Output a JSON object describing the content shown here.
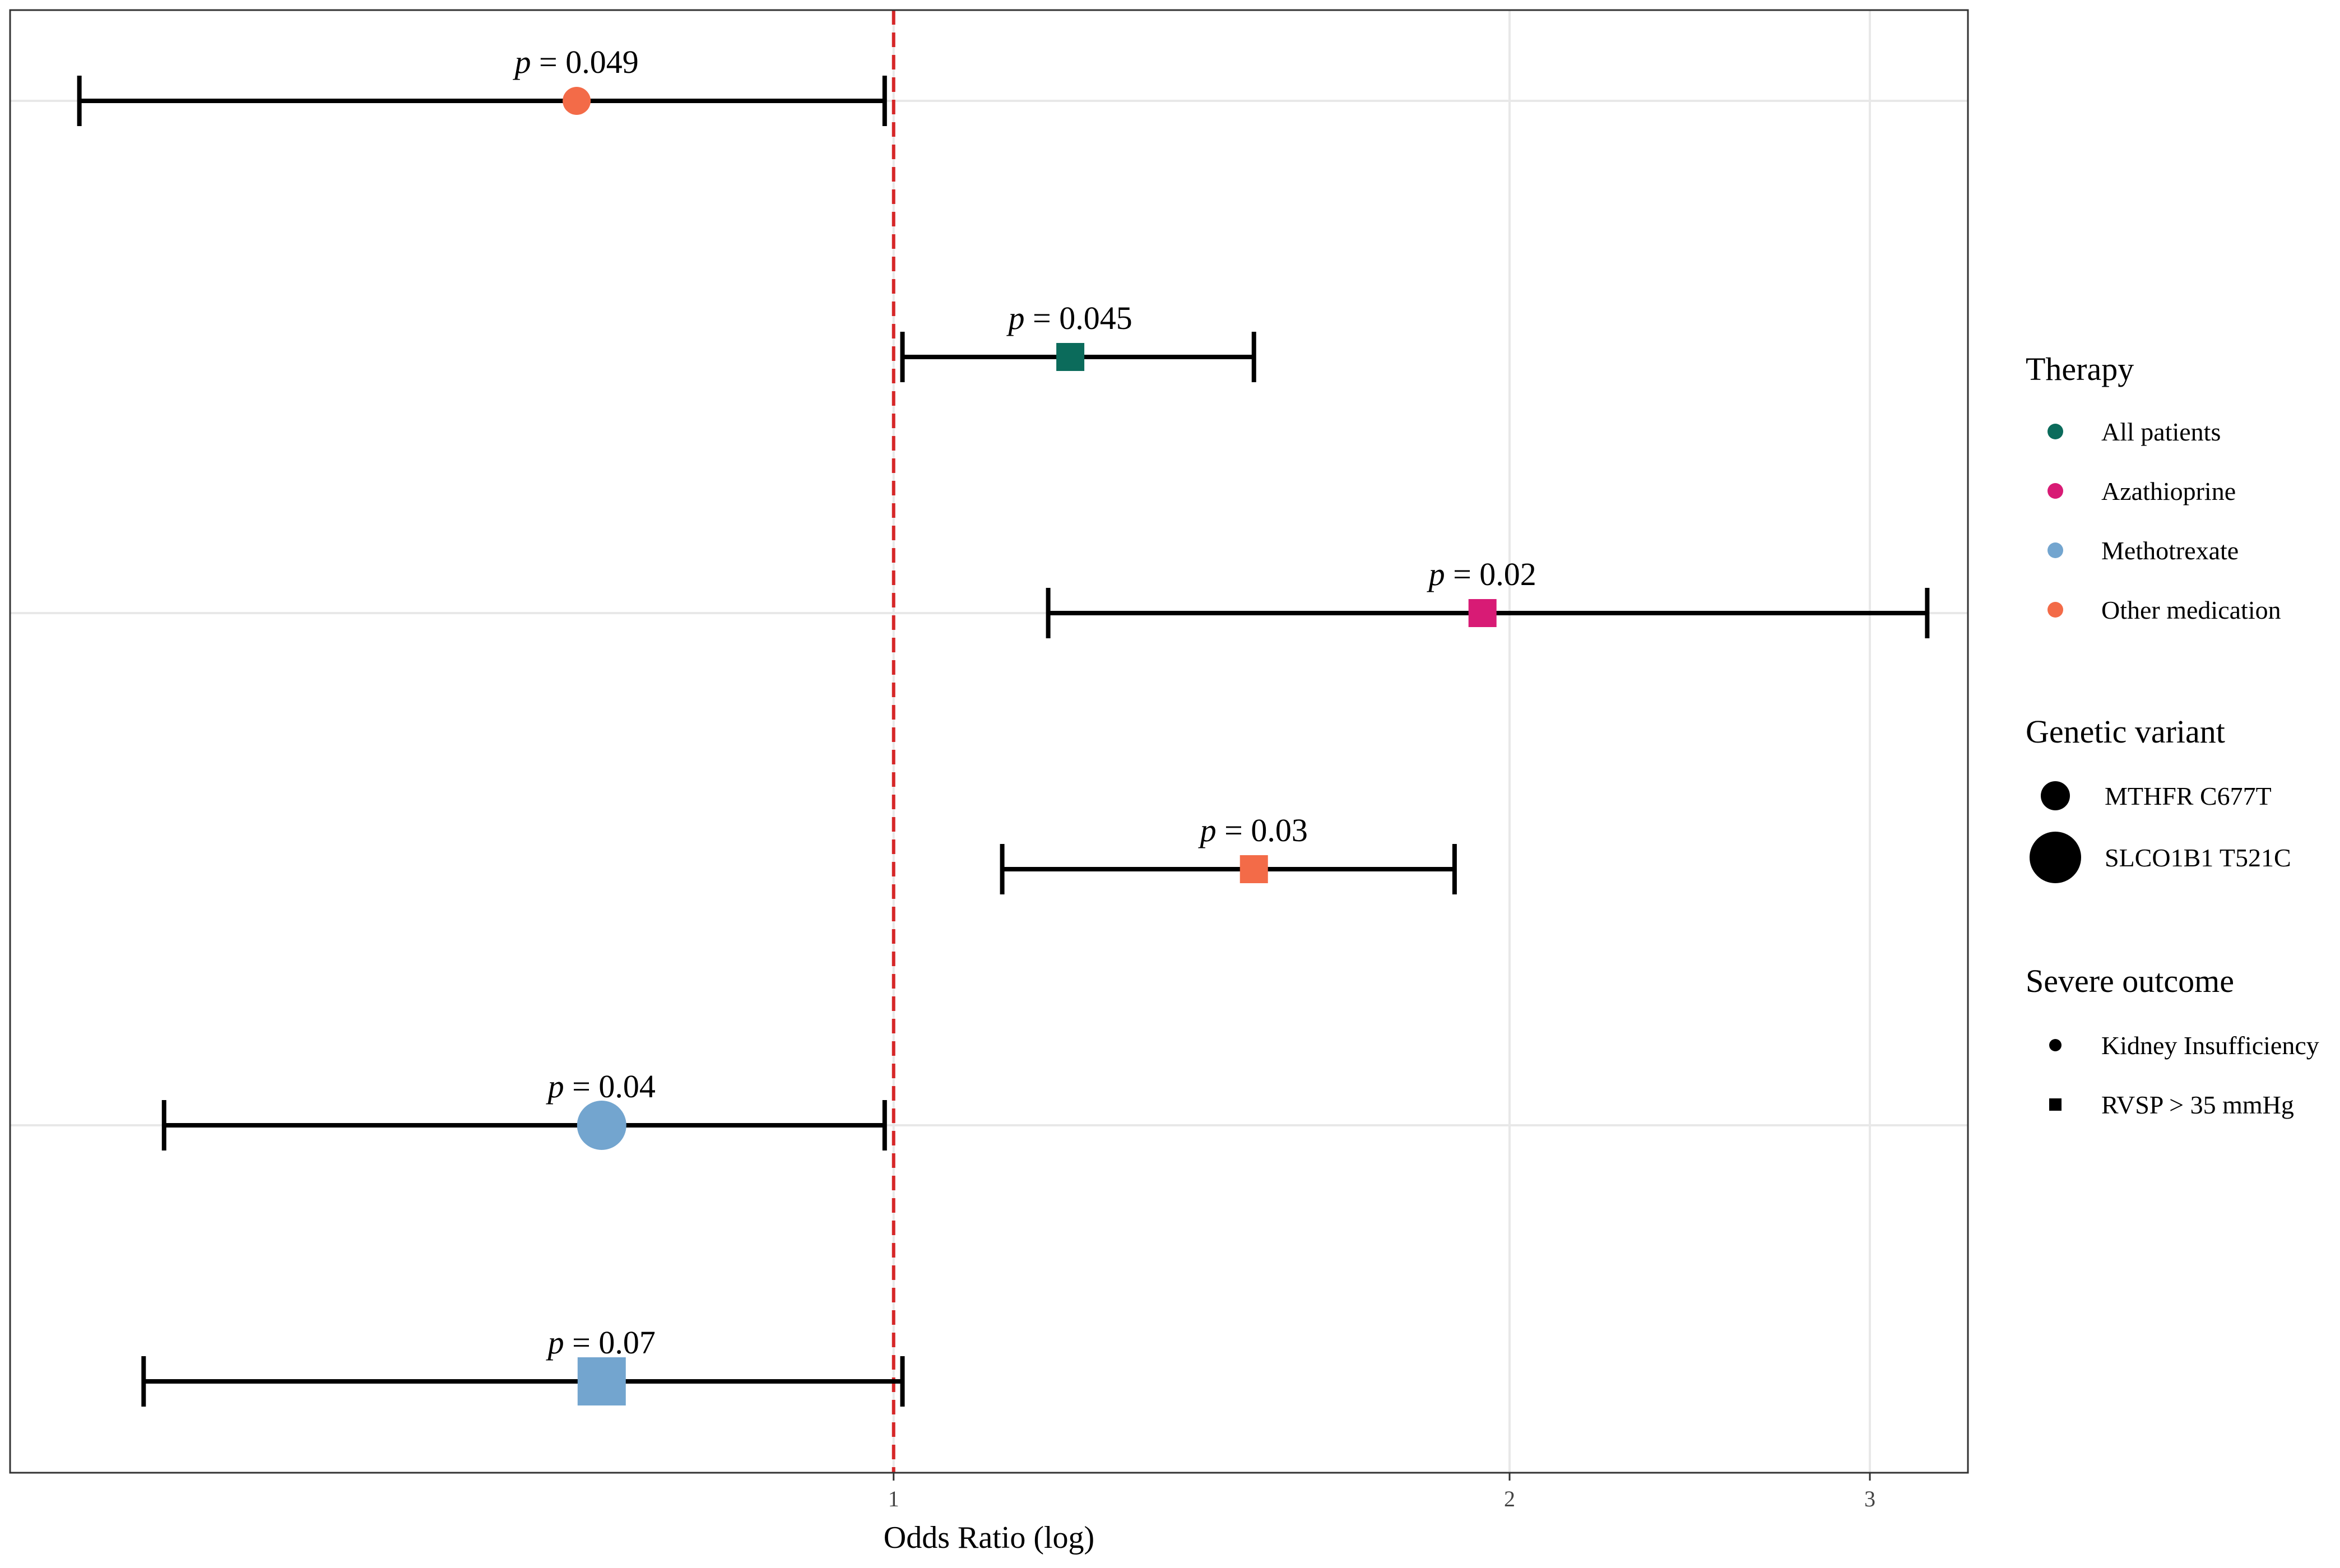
{
  "chart_data": {
    "type": "forest",
    "title": "",
    "xlabel": "Odds Ratio (log)",
    "ylabel": "",
    "x_scale": "log",
    "xlim": [
      0.37,
      3.35
    ],
    "x_ticks": [
      1,
      2,
      3
    ],
    "x_tick_labels": [
      "1",
      "2",
      "3"
    ],
    "reference_line": {
      "x": 1,
      "style": "dashed",
      "color": "#d62728"
    },
    "rows": [
      {
        "or": 0.7,
        "lo": 0.4,
        "hi": 0.99,
        "p_label": "p",
        "p_value": " = 0.049",
        "therapy": "Other medication",
        "variant": "MTHFR C677T",
        "outcome": "Kidney Insufficiency"
      },
      {
        "or": 1.22,
        "lo": 1.01,
        "hi": 1.5,
        "p_label": "p",
        "p_value": " = 0.045",
        "therapy": "All patients",
        "variant": "MTHFR C677T",
        "outcome": "RVSP > 35 mmHg"
      },
      {
        "or": 1.94,
        "lo": 1.19,
        "hi": 3.2,
        "p_label": "p",
        "p_value": " = 0.02",
        "therapy": "Azathioprine",
        "variant": "MTHFR C677T",
        "outcome": "RVSP > 35 mmHg"
      },
      {
        "or": 1.5,
        "lo": 1.13,
        "hi": 1.88,
        "p_label": "p",
        "p_value": " = 0.03",
        "therapy": "Other medication",
        "variant": "MTHFR C677T",
        "outcome": "RVSP > 35 mmHg"
      },
      {
        "or": 0.72,
        "lo": 0.44,
        "hi": 0.99,
        "p_label": "p",
        "p_value": " = 0.04",
        "therapy": "Methotrexate",
        "variant": "SLCO1B1 T521C",
        "outcome": "Kidney Insufficiency"
      },
      {
        "or": 0.72,
        "lo": 0.43,
        "hi": 1.01,
        "p_label": "p",
        "p_value": " = 0.07",
        "therapy": "Methotrexate",
        "variant": "SLCO1B1 T521C",
        "outcome": "RVSP > 35 mmHg"
      }
    ],
    "legend": {
      "position": "right",
      "therapy": {
        "title": "Therapy",
        "entries": [
          {
            "label": "All patients",
            "color": "#0b6b5b"
          },
          {
            "label": "Azathioprine",
            "color": "#d81b75"
          },
          {
            "label": "Methotrexate",
            "color": "#73a5cf"
          },
          {
            "label": "Other medication",
            "color": "#f36b48"
          }
        ]
      },
      "variant": {
        "title": "Genetic variant",
        "entries": [
          {
            "label": "MTHFR C677T",
            "size": "small"
          },
          {
            "label": "SLCO1B1 T521C",
            "size": "large"
          }
        ]
      },
      "outcome": {
        "title": "Severe outcome",
        "entries": [
          {
            "label": "Kidney Insufficiency",
            "shape": "circle"
          },
          {
            "label": "RVSP > 35 mmHg",
            "shape": "square"
          }
        ]
      }
    }
  }
}
